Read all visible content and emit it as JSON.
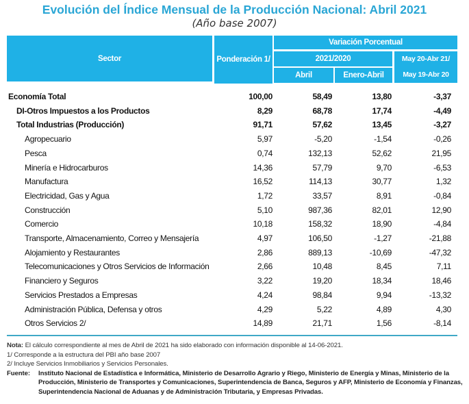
{
  "title": "Evolución del Índice Mensual de la Producción Nacional: Abril 2021",
  "subtitle": "(Año base 2007)",
  "header": {
    "sector": "Sector",
    "ponderacion": "Ponderación 1/",
    "variacion": "Variación Porcentual",
    "period_2021_2020": "2021/2020",
    "abril": "Abril",
    "enero_abril": "Enero-Abril",
    "annual_line1": "May 20-Abr 21/",
    "annual_line2": "May 19-Abr 20"
  },
  "header_color": "#1fb1e6",
  "rows": [
    {
      "sector": "Economía Total",
      "ponderacion": "100,00",
      "abril": "58,49",
      "enero_abril": "13,80",
      "anual": "-3,37",
      "level": 0,
      "bold": true
    },
    {
      "sector": "DI-Otros Impuestos a los Productos",
      "ponderacion": "8,29",
      "abril": "68,78",
      "enero_abril": "17,74",
      "anual": "-4,49",
      "level": 1,
      "bold": true
    },
    {
      "sector": "Total  Industrias (Producción)",
      "ponderacion": "91,71",
      "abril": "57,62",
      "enero_abril": "13,45",
      "anual": "-3,27",
      "level": 1,
      "bold": true
    },
    {
      "sector": "Agropecuario",
      "ponderacion": "5,97",
      "abril": "-5,20",
      "enero_abril": "-1,54",
      "anual": "-0,26",
      "level": 2,
      "bold": false
    },
    {
      "sector": "Pesca",
      "ponderacion": "0,74",
      "abril": "132,13",
      "enero_abril": "52,62",
      "anual": "21,95",
      "level": 2,
      "bold": false
    },
    {
      "sector": "Minería e Hidrocarburos",
      "ponderacion": "14,36",
      "abril": "57,79",
      "enero_abril": "9,70",
      "anual": "-6,53",
      "level": 2,
      "bold": false
    },
    {
      "sector": "Manufactura",
      "ponderacion": "16,52",
      "abril": "114,13",
      "enero_abril": "30,77",
      "anual": "1,32",
      "level": 2,
      "bold": false
    },
    {
      "sector": "Electricidad, Gas y Agua",
      "ponderacion": "1,72",
      "abril": "33,57",
      "enero_abril": "8,91",
      "anual": "-0,84",
      "level": 2,
      "bold": false
    },
    {
      "sector": "Construcción",
      "ponderacion": "5,10",
      "abril": "987,36",
      "enero_abril": "82,01",
      "anual": "12,90",
      "level": 2,
      "bold": false
    },
    {
      "sector": "Comercio",
      "ponderacion": "10,18",
      "abril": "158,32",
      "enero_abril": "18,90",
      "anual": "-4,84",
      "level": 2,
      "bold": false
    },
    {
      "sector": "Transporte, Almacenamiento, Correo y Mensajería",
      "ponderacion": "4,97",
      "abril": "106,50",
      "enero_abril": "-1,27",
      "anual": "-21,88",
      "level": 2,
      "bold": false
    },
    {
      "sector": "Alojamiento y Restaurantes",
      "ponderacion": "2,86",
      "abril": "889,13",
      "enero_abril": "-10,69",
      "anual": "-47,32",
      "level": 2,
      "bold": false
    },
    {
      "sector": "Telecomunicaciones y Otros Servicios de Información",
      "ponderacion": "2,66",
      "abril": "10,48",
      "enero_abril": "8,45",
      "anual": "7,11",
      "level": 2,
      "bold": false
    },
    {
      "sector": "Financiero y Seguros",
      "ponderacion": "3,22",
      "abril": "19,20",
      "enero_abril": "18,34",
      "anual": "18,46",
      "level": 2,
      "bold": false
    },
    {
      "sector": "Servicios Prestados a Empresas",
      "ponderacion": "4,24",
      "abril": "98,84",
      "enero_abril": "9,94",
      "anual": "-13,32",
      "level": 2,
      "bold": false
    },
    {
      "sector": "Administración Pública, Defensa y otros",
      "ponderacion": "4,29",
      "abril": "5,22",
      "enero_abril": "4,89",
      "anual": "4,30",
      "level": 2,
      "bold": false
    },
    {
      "sector": "Otros Servicios 2/",
      "ponderacion": "14,89",
      "abril": "21,71",
      "enero_abril": "1,56",
      "anual": "-8,14",
      "level": 2,
      "bold": false
    }
  ],
  "notes": {
    "nota_label": "Nota:",
    "nota_text": " El cálculo correspondiente al mes de Abril de 2021 ha sido elaborado con información disponible al 14-06-2021.",
    "note1": "1/ Corresponde a la estructura del PBI año base 2007",
    "note2": "2/ Incluye Servicios Inmobiliarios y Servicios Personales.",
    "fuente_label": "Fuente:",
    "fuente_text": "Instituto Nacional de Estadística e Informática, Ministerio de Desarrollo Agrario y Riego, Ministerio de Energía y Minas, Ministerio de la Producción, Ministerio de Transportes y Comunicaciones, Superintendencia de Banca, Seguros y AFP, Ministerio de Economía y Finanzas, Superintendencia Nacional de Aduanas y de Administración Tributaria, y Empresas Privadas."
  }
}
